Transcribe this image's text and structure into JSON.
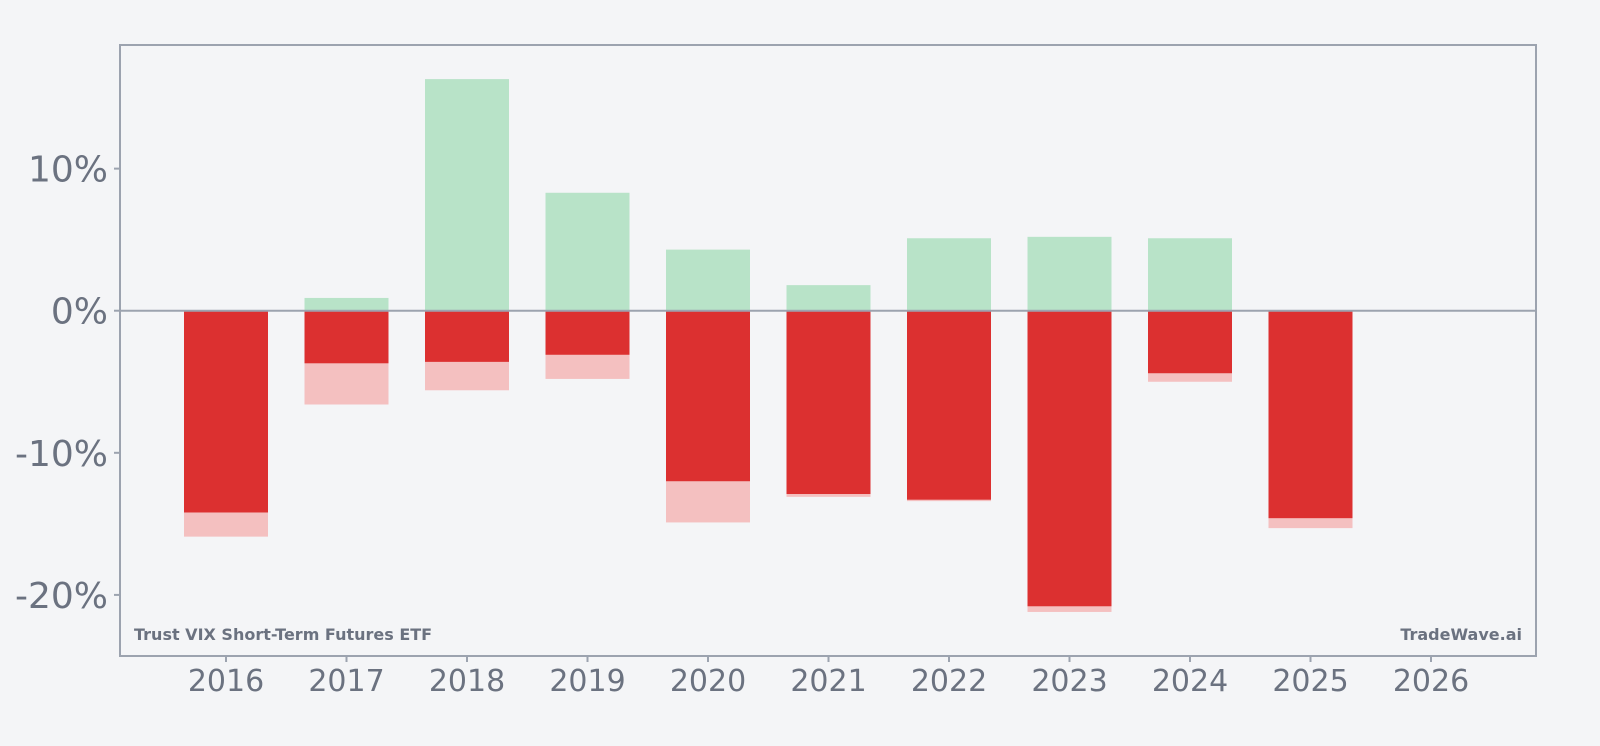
{
  "chart_data": {
    "type": "bar",
    "categories": [
      "2016",
      "2017",
      "2018",
      "2019",
      "2020",
      "2021",
      "2022",
      "2023",
      "2024",
      "2025",
      "2026"
    ],
    "series": [
      {
        "key": "max_gain",
        "values": [
          0,
          0.9,
          16.3,
          8.3,
          4.3,
          1.8,
          5.1,
          5.2,
          5.1,
          0,
          null
        ],
        "color": "#b8e3c8"
      },
      {
        "key": "return",
        "values": [
          -14.2,
          -3.7,
          -3.6,
          -3.1,
          -12.0,
          -12.9,
          -13.3,
          -20.8,
          -4.4,
          -14.6,
          null
        ],
        "color": "#dc3030"
      },
      {
        "key": "max_drawdown",
        "values": [
          -15.9,
          -6.6,
          -5.6,
          -4.8,
          -14.9,
          -13.1,
          -13.4,
          -21.2,
          -5.0,
          -15.3,
          null
        ],
        "color": "#f4c0c0"
      }
    ],
    "ylim": [
      -24.3,
      18.7
    ],
    "y_ticks": [
      10,
      0,
      -10,
      -20
    ],
    "y_tick_labels": [
      "10%",
      "0%",
      "-10%",
      "-20%"
    ],
    "grid": false,
    "zero_line": true
  },
  "watermark_left": "Trust VIX Short-Term Futures ETF",
  "watermark_right": "TradeWave.ai"
}
